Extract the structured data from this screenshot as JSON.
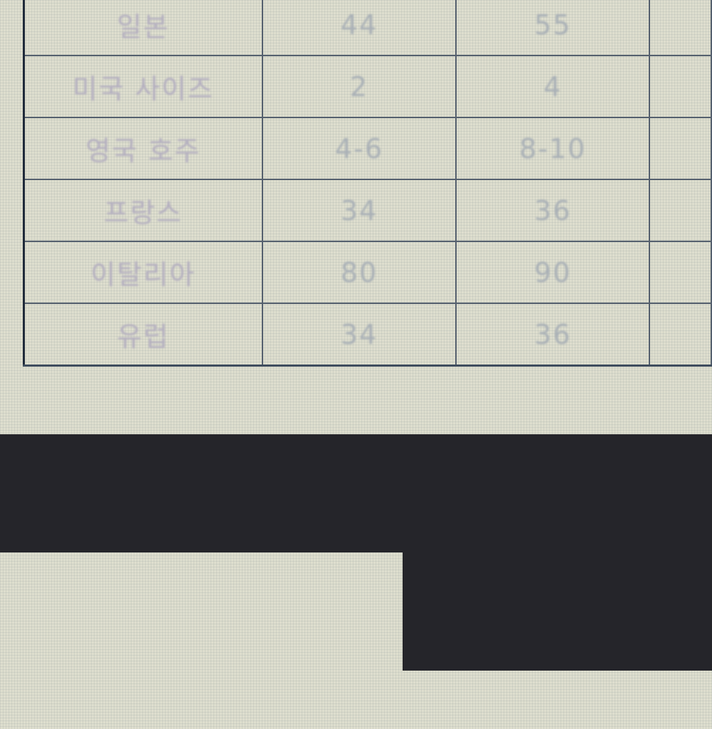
{
  "table": {
    "rows": [
      {
        "label": "일본",
        "col1": "44",
        "col2": "55",
        "col3": ""
      },
      {
        "label": "미국 사이즈",
        "col1": "2",
        "col2": "4",
        "col3": ""
      },
      {
        "label": "영국 호주",
        "col1": "4-6",
        "col2": "8-10",
        "col3": ""
      },
      {
        "label": "프랑스",
        "col1": "34",
        "col2": "36",
        "col3": ""
      },
      {
        "label": "이탈리아",
        "col1": "80",
        "col2": "90",
        "col3": ""
      },
      {
        "label": "유럽",
        "col1": "34",
        "col2": "36",
        "col3": ""
      }
    ]
  },
  "colors": {
    "background": "#dedece",
    "grid_line": "#55606e",
    "overlay": "#25252a"
  }
}
